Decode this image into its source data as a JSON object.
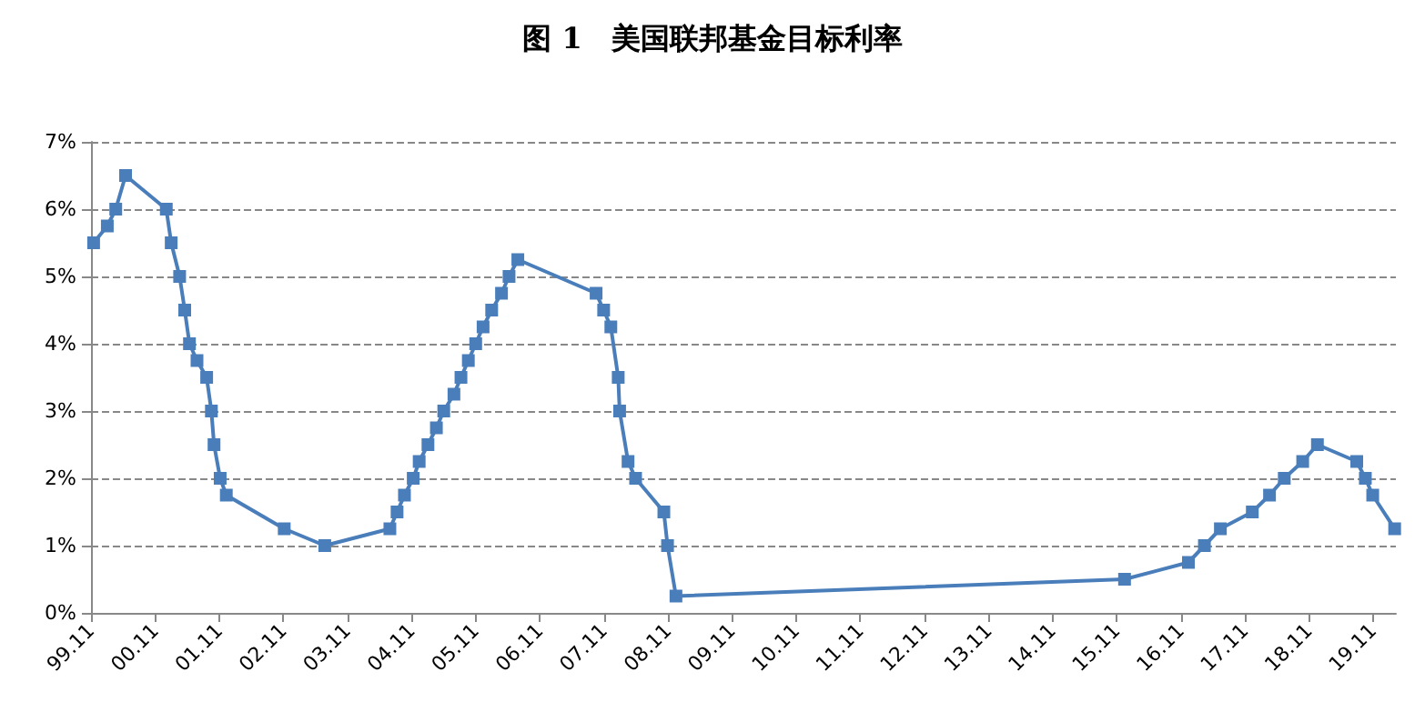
{
  "chart_data": {
    "type": "line",
    "title": "图 1　美国联邦基金目标利率",
    "series": [
      {
        "color": "#4a7ebb",
        "x": [
          "1999-11-16",
          "2000-02-02",
          "2000-03-21",
          "2000-05-16",
          "2001-01-03",
          "2001-01-31",
          "2001-03-20",
          "2001-04-18",
          "2001-05-15",
          "2001-06-27",
          "2001-08-21",
          "2001-09-17",
          "2001-10-02",
          "2001-11-06",
          "2001-12-11",
          "2002-11-06",
          "2003-06-25",
          "2004-06-30",
          "2004-08-10",
          "2004-09-21",
          "2004-11-10",
          "2004-12-14",
          "2005-02-02",
          "2005-03-22",
          "2005-05-03",
          "2005-06-30",
          "2005-08-09",
          "2005-09-20",
          "2005-11-01",
          "2005-12-13",
          "2006-01-31",
          "2006-03-28",
          "2006-05-10",
          "2006-06-29",
          "2007-09-18",
          "2007-10-31",
          "2007-12-11",
          "2008-01-22",
          "2008-01-30",
          "2008-03-18",
          "2008-04-30",
          "2008-10-08",
          "2008-10-29",
          "2008-12-16",
          "2015-12-16",
          "2016-12-14",
          "2017-03-15",
          "2017-06-14",
          "2017-12-13",
          "2018-03-21",
          "2018-06-13",
          "2018-09-26",
          "2018-12-19",
          "2019-07-31",
          "2019-09-18",
          "2019-10-30",
          "2020-03-03"
        ],
        "values": [
          5.5,
          5.75,
          6,
          6.5,
          6,
          5.5,
          5,
          4.5,
          4,
          3.75,
          3.5,
          3,
          2.5,
          2,
          1.75,
          1.25,
          1,
          1.25,
          1.5,
          1.75,
          2,
          2.25,
          2.5,
          2.75,
          3,
          3.25,
          3.5,
          3.75,
          4,
          4.25,
          4.5,
          4.75,
          5,
          5.25,
          4.75,
          4.5,
          4.25,
          3.5,
          3,
          2.25,
          2,
          1.5,
          1,
          0.25,
          0.5,
          0.75,
          1,
          1.25,
          1.5,
          1.75,
          2,
          2.25,
          2.5,
          2.25,
          2,
          1.75,
          1.25
        ]
      }
    ],
    "xlim": [
      "1999-11-01",
      "2020-03-10"
    ],
    "xticks": [
      {
        "value": "1999-11",
        "label": "99.11"
      },
      {
        "value": "2000-11",
        "label": "00.11"
      },
      {
        "value": "2001-11",
        "label": "01.11"
      },
      {
        "value": "2002-11",
        "label": "02.11"
      },
      {
        "value": "2003-11",
        "label": "03.11"
      },
      {
        "value": "2004-11",
        "label": "04.11"
      },
      {
        "value": "2005-11",
        "label": "05.11"
      },
      {
        "value": "2006-11",
        "label": "06.11"
      },
      {
        "value": "2007-11",
        "label": "07.11"
      },
      {
        "value": "2008-11",
        "label": "08.11"
      },
      {
        "value": "2009-11",
        "label": "09.11"
      },
      {
        "value": "2010-11",
        "label": "10.11"
      },
      {
        "value": "2011-11",
        "label": "11.11"
      },
      {
        "value": "2012-11",
        "label": "12.11"
      },
      {
        "value": "2013-11",
        "label": "13.11"
      },
      {
        "value": "2014-11",
        "label": "14.11"
      },
      {
        "value": "2015-11",
        "label": "15.11"
      },
      {
        "value": "2016-11",
        "label": "16.11"
      },
      {
        "value": "2017-11",
        "label": "17.11"
      },
      {
        "value": "2018-11",
        "label": "18.11"
      },
      {
        "value": "2019-11",
        "label": "19.11"
      }
    ],
    "ylim": [
      0,
      7
    ],
    "yticks": [
      {
        "value": 0,
        "label": "0%"
      },
      {
        "value": 1,
        "label": "1%"
      },
      {
        "value": 2,
        "label": "2%"
      },
      {
        "value": 3,
        "label": "3%"
      },
      {
        "value": 4,
        "label": "4%"
      },
      {
        "value": 5,
        "label": "5%"
      },
      {
        "value": 6,
        "label": "6%"
      },
      {
        "value": 7,
        "label": "7%"
      }
    ],
    "grid": "y",
    "marker": "square",
    "line_style": "solid"
  }
}
